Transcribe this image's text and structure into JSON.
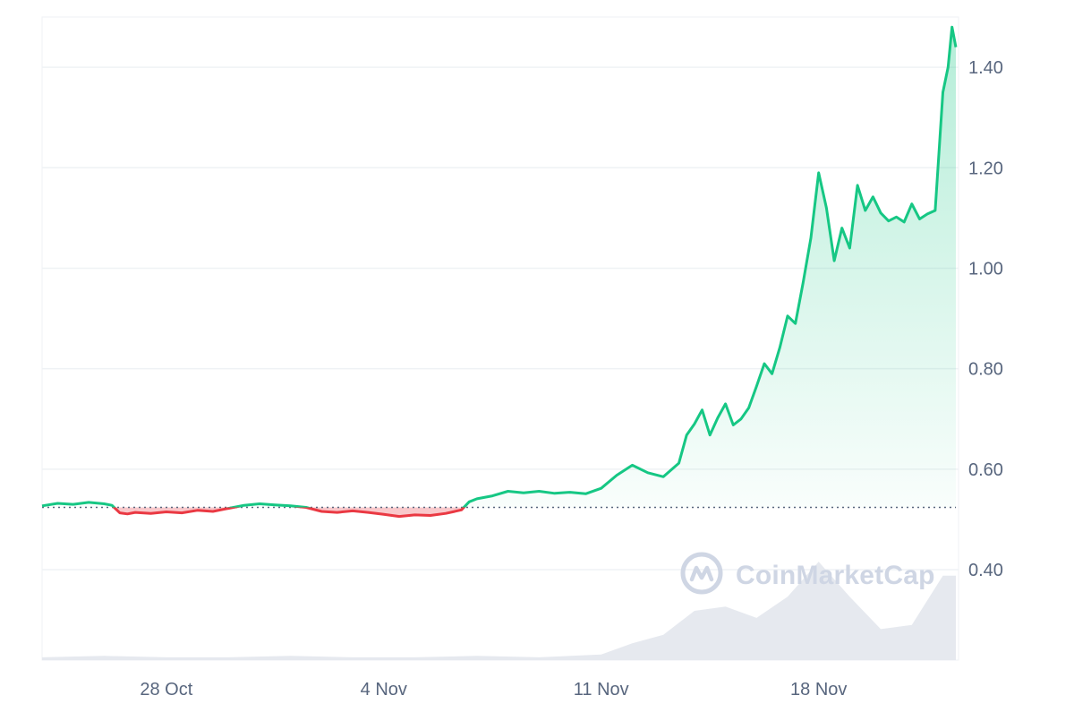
{
  "chart_data": {
    "type": "line",
    "title": "",
    "xlabel": "",
    "ylabel": "",
    "x_range": [
      "2024-10-24",
      "2024-11-22T10:00"
    ],
    "ylim": [
      0.22,
      1.5
    ],
    "grid": true,
    "legend": "none",
    "baseline_value": 0.524,
    "yticks": [
      {
        "value": 0.4,
        "label": "0.40"
      },
      {
        "value": 0.6,
        "label": "0.60"
      },
      {
        "value": 0.8,
        "label": "0.80"
      },
      {
        "value": 1.0,
        "label": "1.00"
      },
      {
        "value": 1.2,
        "label": "1.20"
      },
      {
        "value": 1.4,
        "label": "1.40"
      }
    ],
    "xticks": [
      {
        "date": "2024-10-28",
        "label": "28 Oct"
      },
      {
        "date": "2024-11-04",
        "label": "4 Nov"
      },
      {
        "date": "2024-11-11",
        "label": "11 Nov"
      },
      {
        "date": "2024-11-18",
        "label": "18 Nov"
      }
    ],
    "series": [
      {
        "points": [
          [
            "2024-10-24T00:00",
            0.527
          ],
          [
            "2024-10-24T12:00",
            0.532
          ],
          [
            "2024-10-25T00:00",
            0.53
          ],
          [
            "2024-10-25T12:00",
            0.534
          ],
          [
            "2024-10-26T00:00",
            0.531
          ],
          [
            "2024-10-26T06:00",
            0.528
          ],
          [
            "2024-10-26T12:00",
            0.513
          ],
          [
            "2024-10-26T18:00",
            0.511
          ],
          [
            "2024-10-27T00:00",
            0.514
          ],
          [
            "2024-10-27T12:00",
            0.512
          ],
          [
            "2024-10-28T00:00",
            0.515
          ],
          [
            "2024-10-28T12:00",
            0.513
          ],
          [
            "2024-10-29T00:00",
            0.518
          ],
          [
            "2024-10-29T12:00",
            0.516
          ],
          [
            "2024-10-30T00:00",
            0.522
          ],
          [
            "2024-10-30T12:00",
            0.528
          ],
          [
            "2024-10-31T00:00",
            0.531
          ],
          [
            "2024-10-31T12:00",
            0.529
          ],
          [
            "2024-11-01T00:00",
            0.527
          ],
          [
            "2024-11-01T12:00",
            0.524
          ],
          [
            "2024-11-02T00:00",
            0.516
          ],
          [
            "2024-11-02T12:00",
            0.514
          ],
          [
            "2024-11-03T00:00",
            0.517
          ],
          [
            "2024-11-03T12:00",
            0.514
          ],
          [
            "2024-11-04T00:00",
            0.51
          ],
          [
            "2024-11-04T12:00",
            0.506
          ],
          [
            "2024-11-05T00:00",
            0.509
          ],
          [
            "2024-11-05T12:00",
            0.508
          ],
          [
            "2024-11-06T00:00",
            0.512
          ],
          [
            "2024-11-06T12:00",
            0.519
          ],
          [
            "2024-11-06T18:00",
            0.535
          ],
          [
            "2024-11-07T00:00",
            0.541
          ],
          [
            "2024-11-07T12:00",
            0.547
          ],
          [
            "2024-11-08T00:00",
            0.556
          ],
          [
            "2024-11-08T12:00",
            0.553
          ],
          [
            "2024-11-09T00:00",
            0.556
          ],
          [
            "2024-11-09T12:00",
            0.552
          ],
          [
            "2024-11-10T00:00",
            0.554
          ],
          [
            "2024-11-10T12:00",
            0.551
          ],
          [
            "2024-11-11T00:00",
            0.562
          ],
          [
            "2024-11-11T12:00",
            0.588
          ],
          [
            "2024-11-12T00:00",
            0.608
          ],
          [
            "2024-11-12T12:00",
            0.593
          ],
          [
            "2024-11-13T00:00",
            0.585
          ],
          [
            "2024-11-13T12:00",
            0.612
          ],
          [
            "2024-11-13T18:00",
            0.668
          ],
          [
            "2024-11-14T00:00",
            0.69
          ],
          [
            "2024-11-14T06:00",
            0.718
          ],
          [
            "2024-11-14T12:00",
            0.668
          ],
          [
            "2024-11-14T18:00",
            0.702
          ],
          [
            "2024-11-15T00:00",
            0.73
          ],
          [
            "2024-11-15T06:00",
            0.688
          ],
          [
            "2024-11-15T12:00",
            0.7
          ],
          [
            "2024-11-15T18:00",
            0.722
          ],
          [
            "2024-11-16T00:00",
            0.765
          ],
          [
            "2024-11-16T06:00",
            0.81
          ],
          [
            "2024-11-16T12:00",
            0.79
          ],
          [
            "2024-11-16T18:00",
            0.842
          ],
          [
            "2024-11-17T00:00",
            0.905
          ],
          [
            "2024-11-17T06:00",
            0.89
          ],
          [
            "2024-11-17T12:00",
            0.972
          ],
          [
            "2024-11-17T18:00",
            1.06
          ],
          [
            "2024-11-18T00:00",
            1.19
          ],
          [
            "2024-11-18T06:00",
            1.12
          ],
          [
            "2024-11-18T12:00",
            1.015
          ],
          [
            "2024-11-18T18:00",
            1.08
          ],
          [
            "2024-11-19T00:00",
            1.04
          ],
          [
            "2024-11-19T06:00",
            1.165
          ],
          [
            "2024-11-19T12:00",
            1.115
          ],
          [
            "2024-11-19T18:00",
            1.142
          ],
          [
            "2024-11-20T00:00",
            1.11
          ],
          [
            "2024-11-20T06:00",
            1.094
          ],
          [
            "2024-11-20T12:00",
            1.102
          ],
          [
            "2024-11-20T18:00",
            1.092
          ],
          [
            "2024-11-21T00:00",
            1.128
          ],
          [
            "2024-11-21T06:00",
            1.098
          ],
          [
            "2024-11-21T12:00",
            1.108
          ],
          [
            "2024-11-21T18:00",
            1.115
          ],
          [
            "2024-11-22T00:00",
            1.35
          ],
          [
            "2024-11-22T04:00",
            1.4
          ],
          [
            "2024-11-22T07:00",
            1.48
          ],
          [
            "2024-11-22T10:00",
            1.44
          ]
        ]
      }
    ],
    "volume": [
      [
        "2024-10-24",
        0.02
      ],
      [
        "2024-10-26",
        0.03
      ],
      [
        "2024-10-28",
        0.02
      ],
      [
        "2024-10-30",
        0.02
      ],
      [
        "2024-11-01",
        0.03
      ],
      [
        "2024-11-03",
        0.02
      ],
      [
        "2024-11-05",
        0.02
      ],
      [
        "2024-11-07",
        0.03
      ],
      [
        "2024-11-09",
        0.02
      ],
      [
        "2024-11-11",
        0.04
      ],
      [
        "2024-11-12",
        0.12
      ],
      [
        "2024-11-13",
        0.18
      ],
      [
        "2024-11-14",
        0.35
      ],
      [
        "2024-11-15",
        0.38
      ],
      [
        "2024-11-16",
        0.3
      ],
      [
        "2024-11-17",
        0.45
      ],
      [
        "2024-11-18",
        0.7
      ],
      [
        "2024-11-19",
        0.45
      ],
      [
        "2024-11-20",
        0.22
      ],
      [
        "2024-11-21",
        0.25
      ],
      [
        "2024-11-22",
        0.6
      ]
    ],
    "colors": {
      "up": "#16c784",
      "down": "#ea3943",
      "grid": "#eff2f5",
      "baseline": "#58667e",
      "volume": "#e6e9ef",
      "watermark": "#cfd6e4"
    }
  },
  "watermark": {
    "text": "CoinMarketCap"
  }
}
